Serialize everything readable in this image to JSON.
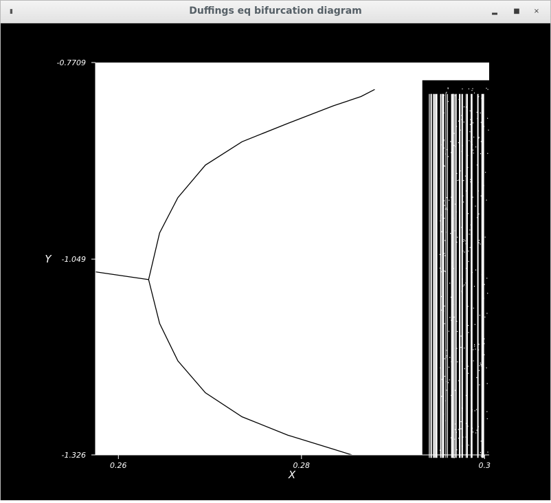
{
  "window": {
    "title": "Duffings eq bifurcation diagram",
    "menu_icon": "window-menu-icon",
    "buttons": [
      "minimize-icon",
      "maximize-icon",
      "close-icon"
    ]
  },
  "colors": {
    "background": "#000000",
    "plot": "#ffffff",
    "titlebar": "#e8e8e8"
  },
  "chart_data": {
    "type": "scatter",
    "title": "",
    "xlabel": "X",
    "ylabel": "Y",
    "xlim": [
      0.2575,
      0.3005
    ],
    "ylim": [
      -1.326,
      -0.7709
    ],
    "x_ticks": [
      0.26,
      0.28,
      0.3
    ],
    "x_tick_labels": [
      "0.26",
      "0.28",
      "0.3"
    ],
    "y_ticks": [
      -0.7709,
      -1.049,
      -1.326
    ],
    "y_tick_labels": [
      "-0.7709",
      "-1.049",
      "-1.326"
    ],
    "grid": false,
    "legend": "none",
    "series": [
      {
        "values": "branch",
        "x": [
          0.2575,
          0.2633
        ],
        "y": [
          -1.067,
          -1.078
        ]
      },
      {
        "values": "branch",
        "x": [
          0.2633,
          0.2645,
          0.2665,
          0.2695,
          0.2735,
          0.2785,
          0.2835,
          0.2865,
          0.288
        ],
        "y": [
          -1.078,
          -1.012,
          -0.962,
          -0.916,
          -0.883,
          -0.857,
          -0.832,
          -0.819,
          -0.809
        ]
      },
      {
        "values": "branch",
        "x": [
          0.2633,
          0.2645,
          0.2665,
          0.2695,
          0.2735,
          0.2785,
          0.2835,
          0.2865,
          0.288
        ],
        "y": [
          -1.078,
          -1.14,
          -1.193,
          -1.238,
          -1.272,
          -1.298,
          -1.318,
          -1.33,
          -1.334
        ]
      }
    ],
    "chaotic_region": {
      "x_start": 0.2932,
      "x_end": 0.3005,
      "y_min": -1.334,
      "y_max": -0.796
    }
  }
}
